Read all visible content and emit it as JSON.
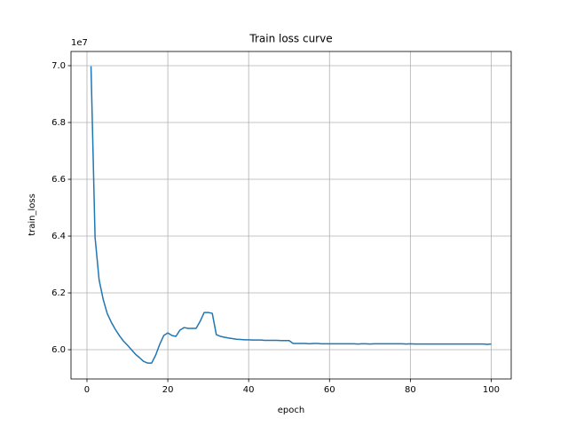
{
  "chart_data": {
    "type": "line",
    "title": "Train loss curve",
    "xlabel": "epoch",
    "ylabel": "train_loss",
    "y_offset_label": "1e7",
    "x": [
      1,
      2,
      3,
      4,
      5,
      6,
      7,
      8,
      9,
      10,
      11,
      12,
      13,
      14,
      15,
      16,
      17,
      18,
      19,
      20,
      21,
      22,
      23,
      24,
      25,
      26,
      27,
      28,
      29,
      30,
      31,
      32,
      33,
      34,
      35,
      36,
      37,
      38,
      39,
      40,
      41,
      42,
      43,
      44,
      45,
      46,
      47,
      48,
      49,
      50,
      51,
      52,
      53,
      54,
      55,
      56,
      57,
      58,
      59,
      60,
      61,
      62,
      63,
      64,
      65,
      66,
      67,
      68,
      69,
      70,
      71,
      72,
      73,
      74,
      75,
      76,
      77,
      78,
      79,
      80,
      81,
      82,
      83,
      84,
      85,
      86,
      87,
      88,
      89,
      90,
      91,
      92,
      93,
      94,
      95,
      96,
      97,
      98,
      99,
      100
    ],
    "series": [
      {
        "name": "train_loss",
        "color": "#1f77b4",
        "values": [
          6.998,
          6.396,
          6.246,
          6.178,
          6.128,
          6.097,
          6.072,
          6.05,
          6.031,
          6.016,
          6.0,
          5.984,
          5.972,
          5.959,
          5.953,
          5.953,
          5.981,
          6.019,
          6.05,
          6.059,
          6.05,
          6.047,
          6.069,
          6.078,
          6.075,
          6.075,
          6.075,
          6.1,
          6.131,
          6.131,
          6.128,
          6.053,
          6.047,
          6.044,
          6.041,
          6.039,
          6.037,
          6.036,
          6.035,
          6.035,
          6.034,
          6.034,
          6.034,
          6.033,
          6.033,
          6.033,
          6.033,
          6.032,
          6.032,
          6.032,
          6.022,
          6.022,
          6.022,
          6.022,
          6.021,
          6.022,
          6.022,
          6.021,
          6.021,
          6.021,
          6.021,
          6.021,
          6.021,
          6.021,
          6.021,
          6.021,
          6.02,
          6.021,
          6.021,
          6.02,
          6.021,
          6.021,
          6.021,
          6.021,
          6.021,
          6.021,
          6.021,
          6.021,
          6.02,
          6.021,
          6.02,
          6.02,
          6.02,
          6.02,
          6.02,
          6.02,
          6.02,
          6.02,
          6.02,
          6.02,
          6.02,
          6.02,
          6.02,
          6.02,
          6.02,
          6.02,
          6.02,
          6.02,
          6.019,
          6.02
        ]
      }
    ],
    "xlim": [
      -3.95,
      104.95
    ],
    "ylim": [
      5.897,
      7.05
    ],
    "xticks": [
      0,
      20,
      40,
      60,
      80,
      100
    ],
    "yticks": [
      {
        "value": 6.0,
        "label": "6.0"
      },
      {
        "value": 6.2,
        "label": "6.2"
      },
      {
        "value": 6.4,
        "label": "6.4"
      },
      {
        "value": 6.6,
        "label": "6.6"
      },
      {
        "value": 6.8,
        "label": "6.8"
      },
      {
        "value": 7.0,
        "label": "7.0"
      }
    ],
    "grid": true
  }
}
